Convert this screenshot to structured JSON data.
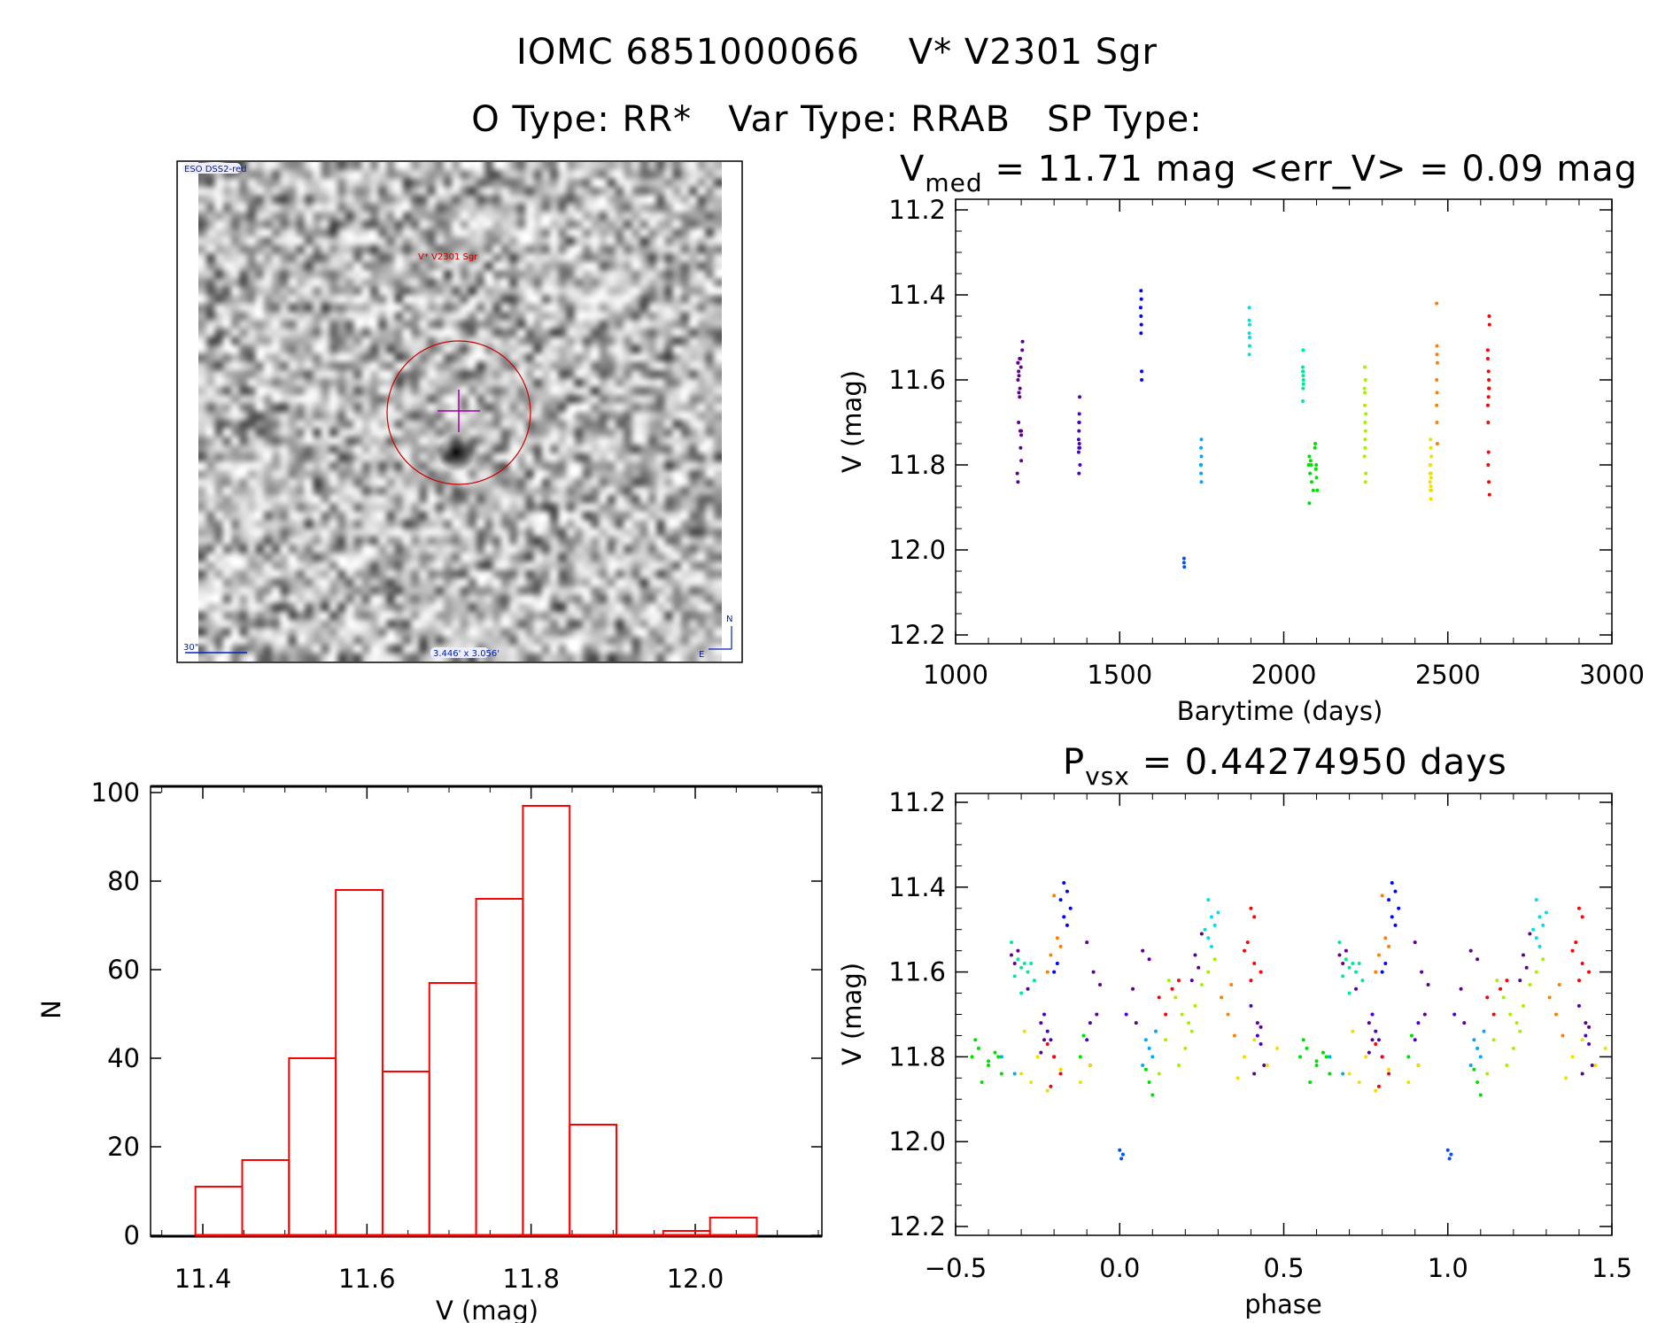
{
  "header": {
    "title_line1": "IOMC 6851000066    V* V2301 Sgr",
    "title_line2": "O Type: RR*   Var Type: RRAB   SP Type:"
  },
  "image_panel": {
    "survey_label": "ESO DSS2-red",
    "target_label": "V* V2301 Sgr",
    "scale_label": "30\"",
    "fov_label": "3.446' x 3.056'",
    "north_label": "N",
    "east_label": "E",
    "circle_color": "#cc0000",
    "crosshair_color": "#a000a0"
  },
  "chart_data": [
    {
      "type": "scatter",
      "title_main": "V",
      "title_sub": "med",
      "title_rest": " = 11.71 mag <err_V> = 0.09 mag",
      "xlabel": "Barytime (days)",
      "ylabel": "V (mag)",
      "xlim": [
        1000,
        3000
      ],
      "ylim": [
        11.2,
        12.2
      ],
      "y_inverted": true,
      "xticks": [
        "1000",
        "1500",
        "2000",
        "2500",
        "3000"
      ],
      "yticks": [
        "11.2",
        "11.4",
        "11.6",
        "11.8",
        "12.0",
        "12.2"
      ],
      "grid": false,
      "point_format": "[barytime, phase, V]",
      "groups": [
        {
          "color": "#5c0090",
          "points": [
            [
              1190,
              -0.33,
              11.56
            ],
            [
              1192,
              -0.32,
              11.58
            ],
            [
              1195,
              -0.31,
              11.55
            ],
            [
              1197,
              -0.24,
              11.72
            ],
            [
              1198,
              -0.23,
              11.76
            ],
            [
              1200,
              -0.24,
              11.79
            ],
            [
              1190,
              -0.08,
              11.6
            ],
            [
              1192,
              -0.07,
              11.7
            ],
            [
              1193,
              -0.06,
              11.63
            ],
            [
              1195,
              0.04,
              11.64
            ],
            [
              1197,
              0.07,
              11.55
            ],
            [
              1199,
              0.09,
              11.57
            ],
            [
              1200,
              0.05,
              11.72
            ],
            [
              1190,
              0.23,
              11.56
            ],
            [
              1193,
              0.24,
              11.59
            ],
            [
              1196,
              0.22,
              11.62
            ],
            [
              1198,
              0.42,
              11.72
            ],
            [
              1200,
              0.43,
              11.73
            ],
            [
              1188,
              0.44,
              11.82
            ],
            [
              1190,
              0.41,
              11.84
            ],
            [
              1203,
              -0.1,
              11.53
            ],
            [
              1204,
              0.25,
              11.51
            ]
          ]
        },
        {
          "color": "#4b00c8",
          "points": [
            [
              1375,
              -0.22,
              11.74
            ],
            [
              1376,
              -0.21,
              11.76
            ],
            [
              1377,
              -0.23,
              11.7
            ],
            [
              1378,
              -0.1,
              11.76
            ],
            [
              1376,
              -0.09,
              11.72
            ],
            [
              1377,
              0.42,
              11.75
            ],
            [
              1375,
              0.43,
              11.77
            ],
            [
              1378,
              -0.28,
              11.64
            ],
            [
              1376,
              0.02,
              11.7
            ],
            [
              1377,
              0.4,
              11.68
            ],
            [
              1379,
              -0.2,
              11.8
            ],
            [
              1376,
              -0.09,
              11.82
            ]
          ]
        },
        {
          "color": "#0000ff",
          "points": [
            [
              1565,
              -0.17,
              11.39
            ],
            [
              1566,
              -0.16,
              11.41
            ],
            [
              1564,
              -0.18,
              11.43
            ],
            [
              1565,
              -0.15,
              11.45
            ],
            [
              1566,
              -0.17,
              11.47
            ],
            [
              1567,
              -0.19,
              11.58
            ],
            [
              1567,
              -0.2,
              11.6
            ],
            [
              1565,
              -0.16,
              11.49
            ]
          ]
        },
        {
          "color": "#0050ff",
          "points": [
            [
              1696,
              0.0,
              12.02
            ],
            [
              1697,
              0.005,
              12.04
            ],
            [
              1696,
              0.01,
              12.03
            ]
          ]
        },
        {
          "color": "#00a8ff",
          "points": [
            [
              1748,
              0.08,
              11.76
            ],
            [
              1749,
              0.09,
              11.78
            ],
            [
              1747,
              0.1,
              11.8
            ],
            [
              1748,
              0.07,
              11.82
            ],
            [
              1749,
              0.11,
              11.74
            ],
            [
              1748,
              -0.36,
              11.8
            ],
            [
              1749,
              -0.32,
              11.84
            ]
          ]
        },
        {
          "color": "#00e0e8",
          "points": [
            [
              1895,
              0.27,
              11.43
            ],
            [
              1896,
              0.28,
              11.47
            ],
            [
              1895,
              0.29,
              11.49
            ],
            [
              1896,
              0.26,
              11.5
            ],
            [
              1895,
              0.3,
              11.46
            ],
            [
              1896,
              0.27,
              11.52
            ],
            [
              1895,
              0.28,
              11.54
            ]
          ]
        },
        {
          "color": "#00e8a0",
          "points": [
            [
              2058,
              -0.31,
              11.57
            ],
            [
              2059,
              -0.29,
              11.58
            ],
            [
              2060,
              -0.28,
              11.6
            ],
            [
              2059,
              -0.3,
              11.59
            ],
            [
              2058,
              -0.27,
              11.58
            ],
            [
              2060,
              -0.32,
              11.61
            ],
            [
              2059,
              -0.26,
              11.62
            ],
            [
              2058,
              -0.3,
              11.65
            ],
            [
              2059,
              -0.33,
              11.53
            ]
          ]
        },
        {
          "color": "#00e000",
          "points": [
            [
              2076,
              -0.45,
              11.8
            ],
            [
              2078,
              -0.43,
              11.78
            ],
            [
              2080,
              -0.4,
              11.82
            ],
            [
              2082,
              -0.38,
              11.79
            ],
            [
              2085,
              -0.36,
              11.84
            ],
            [
              2090,
              -0.42,
              11.86
            ],
            [
              2095,
              -0.44,
              11.76
            ],
            [
              2098,
              -0.4,
              11.81
            ],
            [
              2100,
              0.08,
              11.83
            ],
            [
              2102,
              0.09,
              11.86
            ],
            [
              2078,
              0.1,
              11.89
            ],
            [
              2084,
              -0.12,
              11.8
            ],
            [
              2096,
              -0.11,
              11.75
            ],
            [
              2099,
              -0.37,
              11.8
            ]
          ]
        },
        {
          "color": "#a8f000",
          "points": [
            [
              2246,
              0.15,
              11.62
            ],
            [
              2247,
              0.17,
              11.66
            ],
            [
              2248,
              0.19,
              11.7
            ],
            [
              2249,
              0.21,
              11.72
            ],
            [
              2250,
              0.23,
              11.68
            ],
            [
              2247,
              0.25,
              11.63
            ],
            [
              2249,
              0.27,
              11.6
            ],
            [
              2248,
              0.14,
              11.76
            ],
            [
              2246,
              0.2,
              11.78
            ],
            [
              2250,
              0.18,
              11.82
            ],
            [
              2247,
              0.29,
              11.57
            ],
            [
              2249,
              0.12,
              11.84
            ],
            [
              2248,
              0.22,
              11.74
            ]
          ]
        },
        {
          "color": "#f0e000",
          "points": [
            [
              2446,
              -0.3,
              11.84
            ],
            [
              2447,
              -0.27,
              11.86
            ],
            [
              2448,
              -0.22,
              11.88
            ],
            [
              2449,
              -0.18,
              11.83
            ],
            [
              2450,
              -0.12,
              11.86
            ],
            [
              2446,
              -0.09,
              11.82
            ],
            [
              2447,
              0.38,
              11.8
            ],
            [
              2448,
              0.41,
              11.76
            ],
            [
              2449,
              0.45,
              11.82
            ],
            [
              2450,
              0.48,
              11.78
            ],
            [
              2446,
              -0.25,
              11.8
            ],
            [
              2448,
              0.36,
              11.85
            ],
            [
              2447,
              -0.29,
              11.74
            ]
          ]
        },
        {
          "color": "#ff8000",
          "points": [
            [
              2466,
              -0.2,
              11.42
            ],
            [
              2467,
              -0.19,
              11.52
            ],
            [
              2468,
              -0.21,
              11.56
            ],
            [
              2467,
              -0.18,
              11.54
            ],
            [
              2466,
              0.31,
              11.66
            ],
            [
              2467,
              0.33,
              11.7
            ],
            [
              2468,
              0.35,
              11.75
            ],
            [
              2467,
              0.34,
              11.63
            ],
            [
              2466,
              -0.22,
              11.6
            ]
          ]
        },
        {
          "color": "#ff0000",
          "points": [
            [
              2622,
              0.12,
              11.66
            ],
            [
              2623,
              0.14,
              11.7
            ],
            [
              2624,
              0.16,
              11.64
            ],
            [
              2625,
              0.18,
              11.62
            ],
            [
              2626,
              0.4,
              11.45
            ],
            [
              2627,
              0.41,
              11.47
            ],
            [
              2622,
              0.39,
              11.53
            ],
            [
              2624,
              0.41,
              11.58
            ],
            [
              2625,
              0.43,
              11.6
            ],
            [
              2626,
              0.4,
              11.62
            ],
            [
              2623,
              -0.2,
              11.8
            ],
            [
              2625,
              -0.18,
              11.84
            ],
            [
              2627,
              -0.21,
              11.87
            ],
            [
              2624,
              -0.22,
              11.77
            ],
            [
              2622,
              0.38,
              11.55
            ]
          ]
        }
      ]
    },
    {
      "type": "bar",
      "subtype": "histogram",
      "xlabel": "V (mag)",
      "ylabel": "N",
      "xlim": [
        11.336,
        12.154
      ],
      "ylim": [
        0,
        100
      ],
      "xticks": [
        "11.4",
        "11.6",
        "11.8",
        "12.0"
      ],
      "yticks": [
        "0",
        "20",
        "40",
        "60",
        "80",
        "100"
      ],
      "bin_start": 11.391,
      "bin_width": 0.057,
      "values": [
        11,
        17,
        40,
        78,
        37,
        57,
        76,
        97,
        25,
        0,
        1,
        4
      ],
      "bar_color": "#ff0000"
    },
    {
      "type": "scatter",
      "title_main": "P",
      "title_sub": "vsx",
      "title_rest": " = 0.44274950 days",
      "xlabel": "phase",
      "ylabel": "V (mag)",
      "xlim": [
        -0.5,
        1.5
      ],
      "ylim": [
        11.2,
        12.2
      ],
      "y_inverted": true,
      "xticks": [
        "−0.5",
        "0.0",
        "0.5",
        "1.0",
        "1.5"
      ],
      "yticks": [
        "11.2",
        "11.4",
        "11.6",
        "11.8",
        "12.0",
        "12.2"
      ],
      "grid": false,
      "note": "phase-folded points of the light curve above, plotted twice (phase and phase+1)"
    }
  ]
}
